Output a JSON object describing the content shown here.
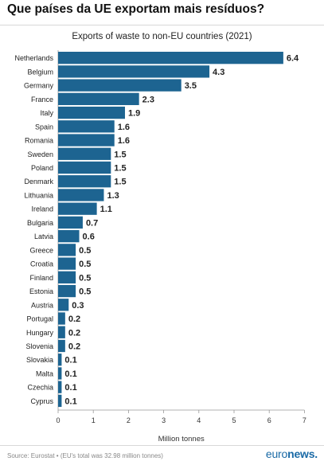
{
  "headline": "Que países da UE exportam mais resíduos?",
  "footer": {
    "source": "Source: Eurostat • (EU's total was 32.98 million tonnes)",
    "logo_part1": "euro",
    "logo_part2": "news."
  },
  "colors": {
    "bar": "#1d6491",
    "axis": "#555555",
    "text": "#222222"
  },
  "chart_data": {
    "type": "bar",
    "orientation": "horizontal",
    "title": "Exports of waste to non-EU countries (2021)",
    "xlabel": "Million tonnes",
    "ylabel": "",
    "xlim": [
      0,
      7
    ],
    "xticks": [
      0,
      1,
      2,
      3,
      4,
      5,
      6,
      7
    ],
    "grid": false,
    "categories": [
      "Netherlands",
      "Belgium",
      "Germany",
      "France",
      "Italy",
      "Spain",
      "Romania",
      "Sweden",
      "Poland",
      "Denmark",
      "Lithuania",
      "Ireland",
      "Bulgaria",
      "Latvia",
      "Greece",
      "Croatia",
      "Finland",
      "Estonia",
      "Austria",
      "Portugal",
      "Hungary",
      "Slovenia",
      "Slovakia",
      "Malta",
      "Czechia",
      "Cyprus"
    ],
    "values": [
      6.4,
      4.3,
      3.5,
      2.3,
      1.9,
      1.6,
      1.6,
      1.5,
      1.5,
      1.5,
      1.3,
      1.1,
      0.7,
      0.6,
      0.5,
      0.5,
      0.5,
      0.5,
      0.3,
      0.2,
      0.2,
      0.2,
      0.1,
      0.1,
      0.1,
      0.1
    ],
    "labels": [
      "6.4",
      "4.3",
      "3.5",
      "2.3",
      "1.9",
      "1.6",
      "1.6",
      "1.5",
      "1.5",
      "1.5",
      "1.3",
      "1.1",
      "0.7",
      "0.6",
      "0.5",
      "0.5",
      "0.5",
      "0.5",
      "0.3",
      "0.2",
      "0.2",
      "0.2",
      "0.1",
      "0.1",
      "0.1",
      "0.1"
    ]
  }
}
